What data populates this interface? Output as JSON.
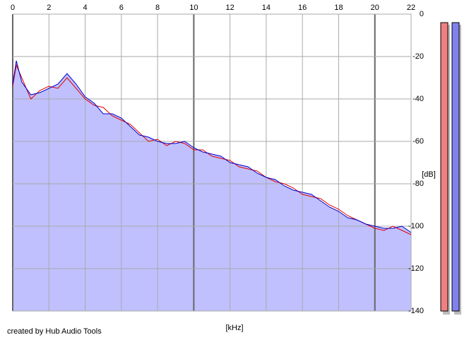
{
  "chart_data": {
    "type": "spectrum",
    "x_label": "[kHz]",
    "y_label": "[dB]",
    "note": "created by Hub Audio Tools",
    "x": [
      0,
      0.2,
      0.5,
      1,
      1.5,
      2,
      2.5,
      3,
      3.5,
      4,
      4.5,
      5,
      5.5,
      6,
      6.5,
      7,
      7.5,
      8,
      8.5,
      9,
      9.5,
      10,
      10.5,
      11,
      11.5,
      12,
      12.5,
      13,
      13.5,
      14,
      14.5,
      15,
      15.5,
      16,
      16.5,
      17,
      17.5,
      18,
      18.5,
      19,
      19.5,
      20,
      20.5,
      21,
      21.5,
      22
    ],
    "series": [
      {
        "color": "#e00000",
        "values": [
          -34,
          -24,
          -30,
          -40,
          -36,
          -34,
          -35,
          -30,
          -35,
          -40,
          -43,
          -44,
          -48,
          -50,
          -52,
          -56,
          -60,
          -59,
          -62,
          -60,
          -61,
          -64,
          -64,
          -67,
          -68,
          -69,
          -72,
          -73,
          -74,
          -77,
          -79,
          -80,
          -82,
          -85,
          -86,
          -87,
          -90,
          -92,
          -95,
          -97,
          -99,
          -101,
          -102,
          -100,
          -102,
          -104
        ]
      },
      {
        "color": "#0000cc",
        "fill": "#c0c0ff",
        "values": [
          -33,
          -22,
          -32,
          -38,
          -37,
          -35,
          -33,
          -28,
          -33,
          -39,
          -42,
          -47,
          -47,
          -49,
          -53,
          -57,
          -58,
          -60,
          -61,
          -61,
          -60,
          -63,
          -65,
          -66,
          -67,
          -70,
          -71,
          -72,
          -75,
          -77,
          -78,
          -81,
          -83,
          -84,
          -85,
          -88,
          -91,
          -93,
          -96,
          -97,
          -99,
          -100,
          -101,
          -101,
          -100,
          -103
        ]
      }
    ],
    "xlim": [
      0,
      22
    ],
    "xticks": [
      0,
      2,
      4,
      6,
      8,
      10,
      12,
      14,
      16,
      18,
      20,
      22
    ],
    "ylim": [
      -140,
      0
    ],
    "yticks": [
      0,
      -20,
      -40,
      -60,
      -80,
      -100,
      -120,
      -140
    ],
    "grid": true
  }
}
